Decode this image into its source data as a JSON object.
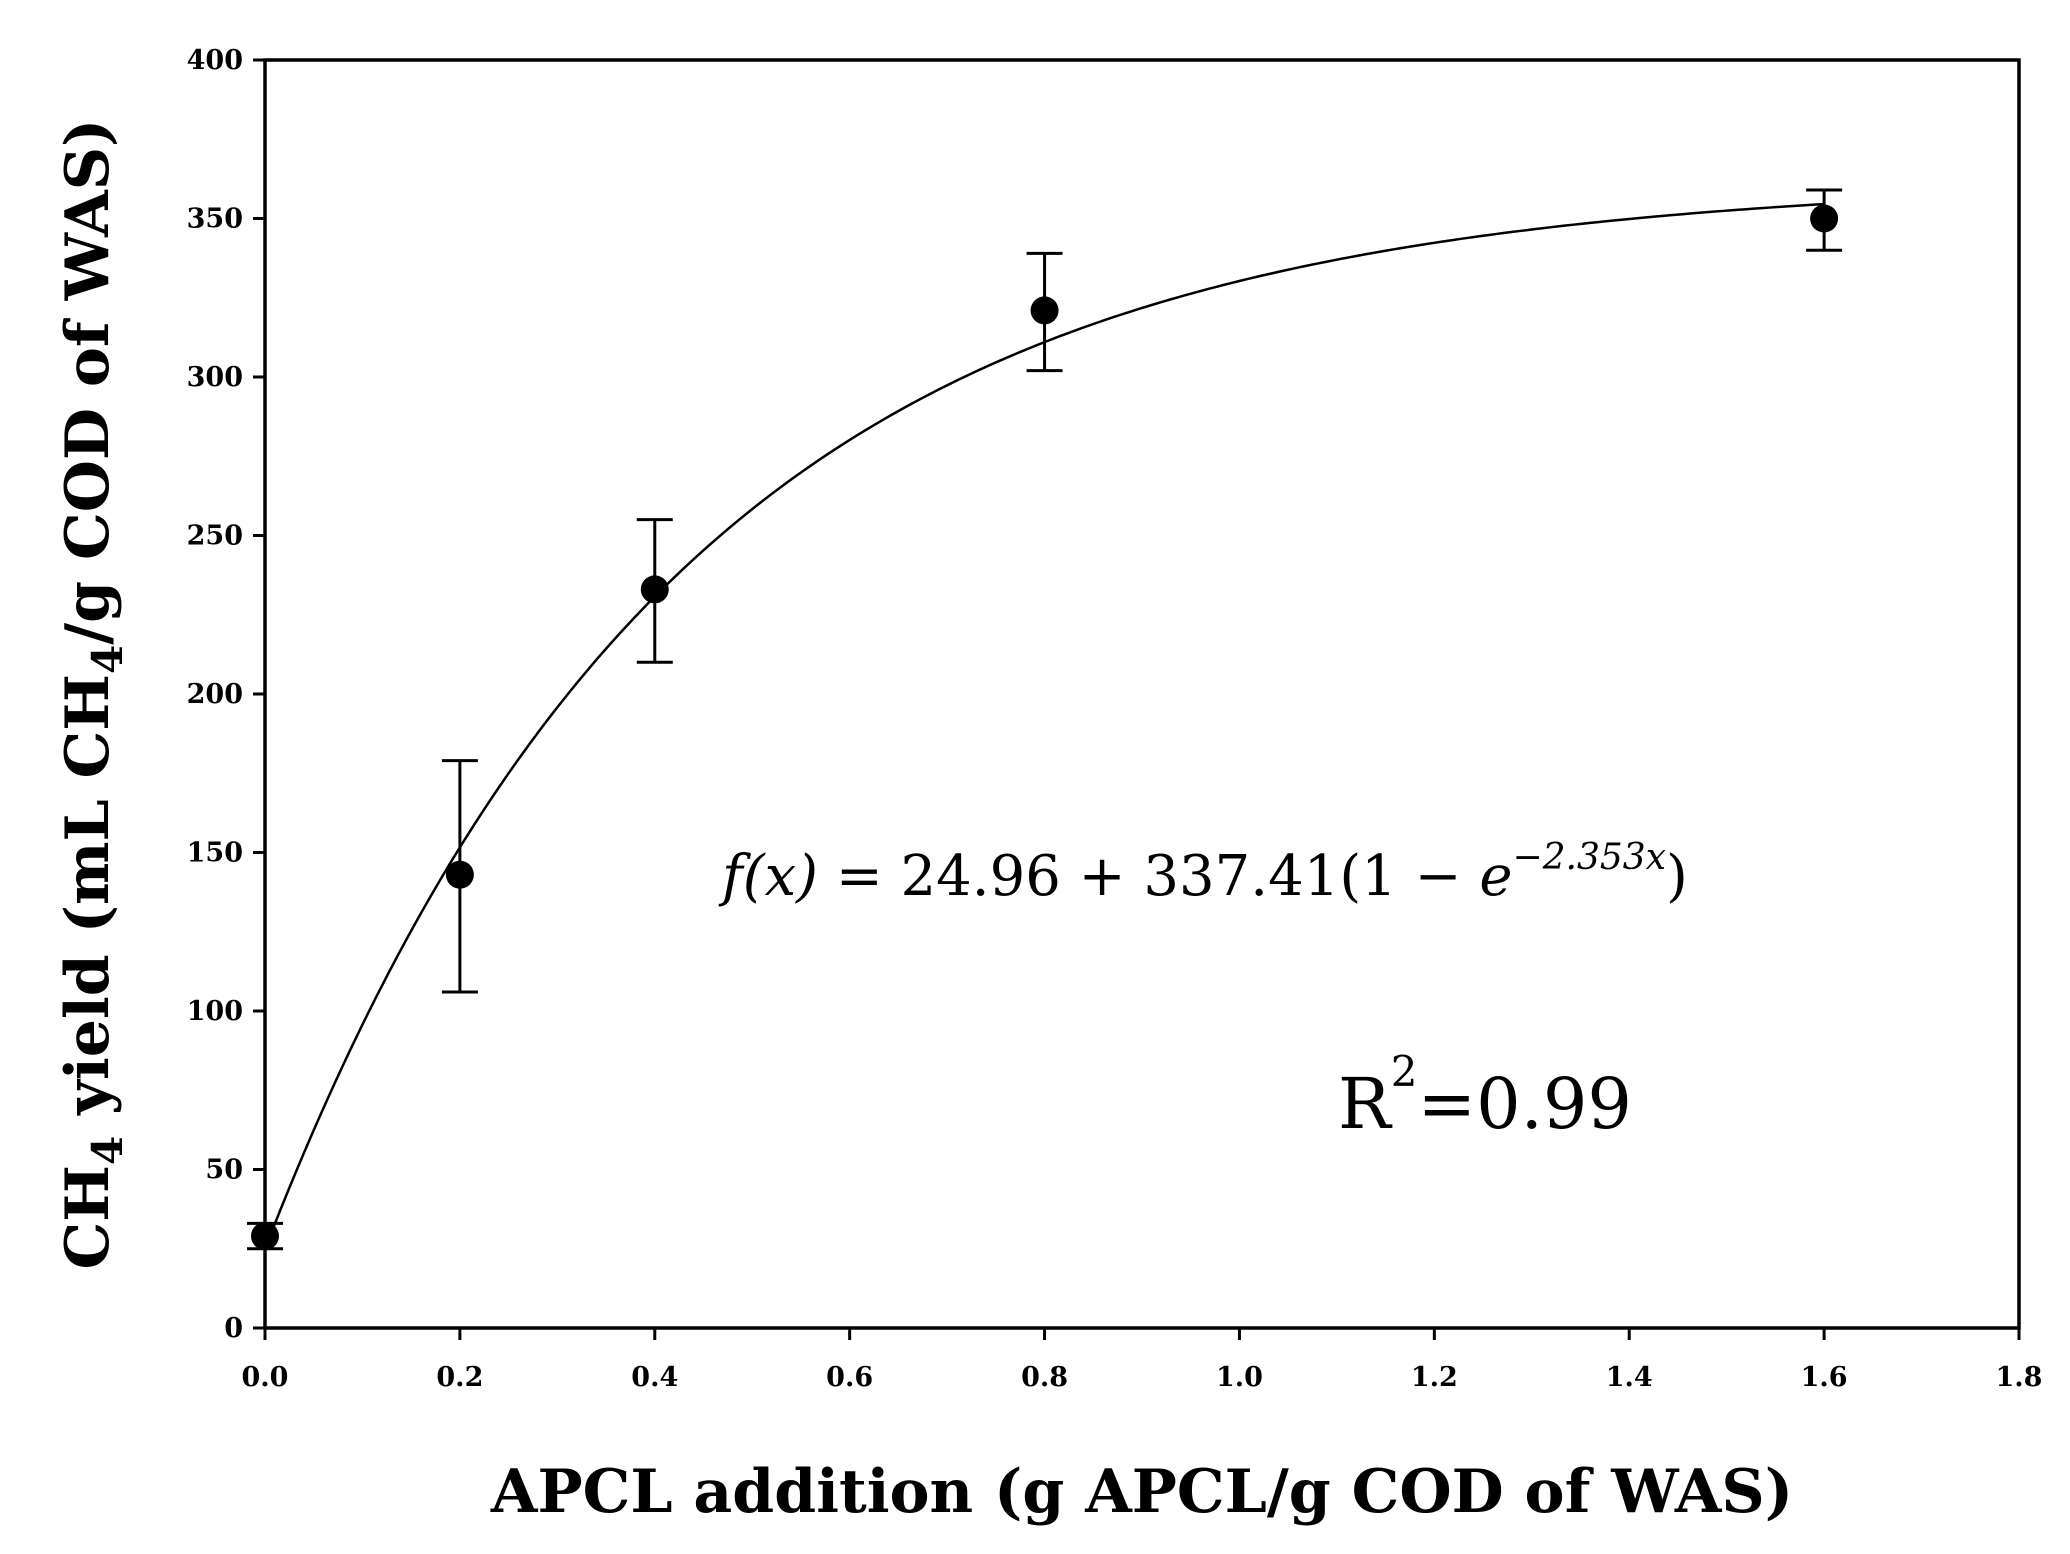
{
  "chart_data": {
    "type": "scatter",
    "title": "",
    "xlabel": "APCL addition (g APCL/g COD of WAS)",
    "ylabel": {
      "prefix": "CH",
      "sub": "4",
      "middle": " yield (mL CH",
      "sub2": "4",
      "suffix": "/g COD of WAS)"
    },
    "xlim": [
      0.0,
      1.8
    ],
    "ylim": [
      0,
      400
    ],
    "x_ticks": [
      "0.0",
      "0.2",
      "0.4",
      "0.6",
      "0.8",
      "1.0",
      "1.2",
      "1.4",
      "1.6",
      "1.8"
    ],
    "y_ticks": [
      "0",
      "50",
      "100",
      "150",
      "200",
      "250",
      "300",
      "350",
      "400"
    ],
    "points": [
      {
        "x": 0.0,
        "y": 29,
        "err_low": 25,
        "err_high": 33
      },
      {
        "x": 0.2,
        "y": 143,
        "err_low": 106,
        "err_high": 179
      },
      {
        "x": 0.4,
        "y": 233,
        "err_low": 210,
        "err_high": 255
      },
      {
        "x": 0.8,
        "y": 321,
        "err_low": 302,
        "err_high": 339
      },
      {
        "x": 1.6,
        "y": 350,
        "err_low": 340,
        "err_high": 359
      }
    ],
    "fit": {
      "a": 24.96,
      "b": 337.41,
      "k": 2.353,
      "x_from": 0.0,
      "x_to": 1.6
    },
    "grid": false,
    "legend": "none",
    "annotations": {
      "equation": {
        "lhs": "f(x)",
        "eq": " = 24.96 + 337.41(1 − ",
        "e": "e",
        "exp": "−2.353x",
        "close": ")"
      },
      "r2": {
        "base": "R",
        "sup": "2",
        "rest": "=0.99"
      }
    },
    "colors": {
      "marker": "#000000",
      "line": "#000000"
    }
  }
}
